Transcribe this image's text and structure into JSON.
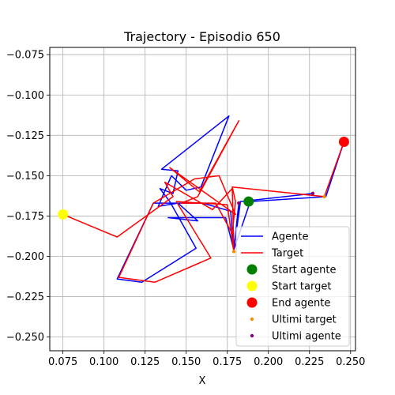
{
  "chart_data": {
    "type": "line",
    "title": "Trajectory - Episodio 650",
    "xlabel": "X",
    "ylabel": "",
    "xlim": [
      0.067,
      0.253
    ],
    "ylim": [
      -0.2585,
      -0.0705
    ],
    "xticks": [
      0.075,
      0.1,
      0.125,
      0.15,
      0.175,
      0.2,
      0.225,
      0.25
    ],
    "xtick_labels": [
      "0.075",
      "0.100",
      "0.125",
      "0.150",
      "0.175",
      "0.200",
      "0.225",
      "0.250"
    ],
    "yticks": [
      -0.075,
      -0.1,
      -0.125,
      -0.15,
      -0.175,
      -0.2,
      -0.225,
      -0.25
    ],
    "ytick_labels": [
      "−0.075",
      "−0.100",
      "−0.125",
      "−0.150",
      "−0.175",
      "−0.200",
      "−0.225",
      "−0.250"
    ],
    "grid": true,
    "legend_position": "lower-right",
    "series": [
      {
        "name": "Agente",
        "kind": "line",
        "color": "#0000ff",
        "points": [
          [
            0.246,
            -0.129
          ],
          [
            0.235,
            -0.163
          ],
          [
            0.189,
            -0.166
          ],
          [
            0.179,
            -0.196
          ],
          [
            0.182,
            -0.167
          ],
          [
            0.179,
            -0.196
          ],
          [
            0.174,
            -0.176
          ],
          [
            0.139,
            -0.176
          ],
          [
            0.157,
            -0.178
          ],
          [
            0.145,
            -0.167
          ],
          [
            0.133,
            -0.169
          ],
          [
            0.141,
            -0.15
          ],
          [
            0.15,
            -0.159
          ],
          [
            0.159,
            -0.157
          ],
          [
            0.176,
            -0.113
          ],
          [
            0.135,
            -0.146
          ],
          [
            0.145,
            -0.147
          ],
          [
            0.142,
            -0.161
          ],
          [
            0.134,
            -0.158
          ],
          [
            0.14,
            -0.166
          ],
          [
            0.156,
            -0.195
          ],
          [
            0.123,
            -0.216
          ],
          [
            0.108,
            -0.214
          ],
          [
            0.13,
            -0.167
          ],
          [
            0.16,
            -0.167
          ],
          [
            0.177,
            -0.172
          ],
          [
            0.179,
            -0.196
          ],
          [
            0.183,
            -0.166
          ],
          [
            0.227,
            -0.161
          ]
        ]
      },
      {
        "name": "Target",
        "kind": "line",
        "color": "#ff0000",
        "points": [
          [
            0.075,
            -0.174
          ],
          [
            0.108,
            -0.188
          ],
          [
            0.142,
            -0.163
          ],
          [
            0.137,
            -0.154
          ],
          [
            0.166,
            -0.171
          ],
          [
            0.178,
            -0.158
          ],
          [
            0.179,
            -0.197
          ],
          [
            0.175,
            -0.168
          ],
          [
            0.144,
            -0.166
          ],
          [
            0.165,
            -0.201
          ],
          [
            0.131,
            -0.216
          ],
          [
            0.109,
            -0.213
          ],
          [
            0.13,
            -0.167
          ],
          [
            0.155,
            -0.152
          ],
          [
            0.17,
            -0.15
          ],
          [
            0.18,
            -0.174
          ],
          [
            0.14,
            -0.145
          ],
          [
            0.158,
            -0.16
          ],
          [
            0.182,
            -0.116
          ],
          [
            0.157,
            -0.163
          ],
          [
            0.147,
            -0.167
          ],
          [
            0.168,
            -0.167
          ],
          [
            0.178,
            -0.186
          ],
          [
            0.18,
            -0.166
          ],
          [
            0.178,
            -0.157
          ],
          [
            0.234,
            -0.163
          ],
          [
            0.246,
            -0.129
          ]
        ]
      },
      {
        "name": "Start agente",
        "kind": "marker",
        "color": "#008000",
        "points": [
          [
            0.188,
            -0.166
          ]
        ]
      },
      {
        "name": "Start target",
        "kind": "marker",
        "color": "#ffff00",
        "points": [
          [
            0.075,
            -0.174
          ]
        ]
      },
      {
        "name": "End agente",
        "kind": "marker",
        "color": "#ff0000",
        "points": [
          [
            0.246,
            -0.129
          ]
        ]
      },
      {
        "name": "Ultimi target",
        "kind": "dots",
        "color": "#ff8c00",
        "points": [
          [
            0.179,
            -0.197
          ],
          [
            0.234,
            -0.163
          ],
          [
            0.246,
            -0.129
          ]
        ]
      },
      {
        "name": "Ultimi agente",
        "kind": "dots",
        "color": "#800080",
        "points": [
          [
            0.182,
            -0.167
          ],
          [
            0.227,
            -0.161
          ],
          [
            0.246,
            -0.129
          ]
        ]
      }
    ]
  }
}
